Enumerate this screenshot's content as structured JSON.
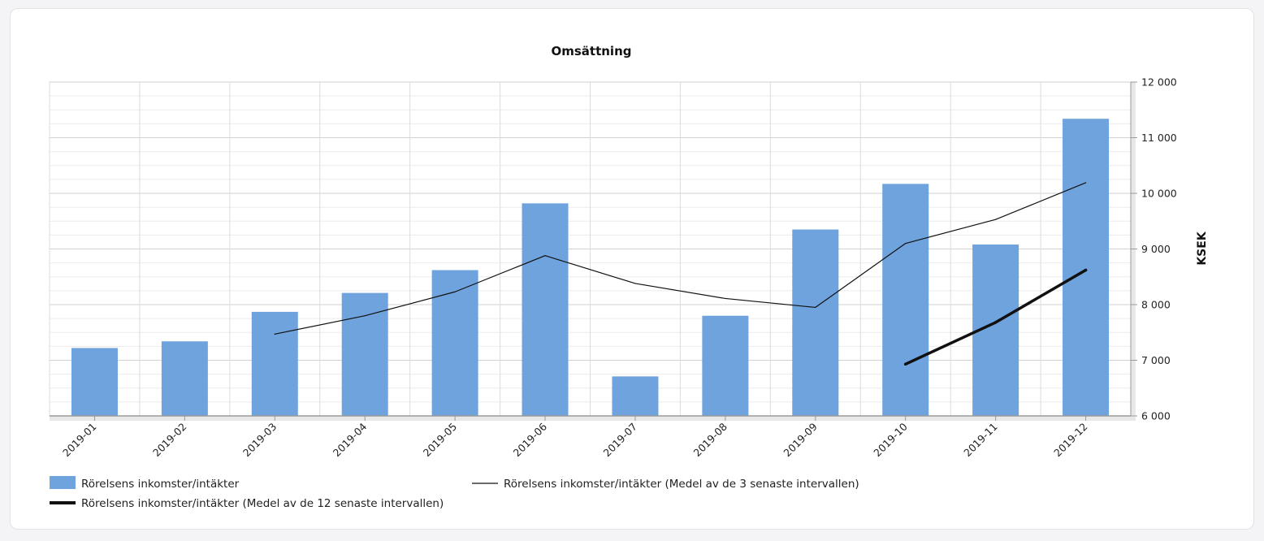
{
  "chart_data": {
    "type": "bar",
    "title": "Omsättning",
    "xlabel": "",
    "ylabel": "KSEK",
    "categories": [
      "2019-01",
      "2019-02",
      "2019-03",
      "2019-04",
      "2019-05",
      "2019-06",
      "2019-07",
      "2019-08",
      "2019-09",
      "2019-10",
      "2019-11",
      "2019-12"
    ],
    "ylim": [
      6000,
      12000
    ],
    "y_ticks": [
      6000,
      7000,
      8000,
      9000,
      10000,
      11000,
      12000
    ],
    "y_tick_labels": [
      "6 000",
      "7 000",
      "8 000",
      "9 000",
      "10 000",
      "11 000",
      "12 000"
    ],
    "y_axis_side": "right",
    "grid": true,
    "legend_position": "bottom",
    "series": [
      {
        "name": "Rörelsens inkomster/intäkter",
        "kind": "bar",
        "color": "#6fa3dd",
        "values": [
          7220,
          7340,
          7870,
          8210,
          8620,
          9820,
          6710,
          7800,
          9350,
          10170,
          9080,
          11340
        ]
      },
      {
        "name": "Rörelsens inkomster/intäkter (Medel av de 3 senaste intervallen)",
        "kind": "line",
        "color": "#111111",
        "line_weight": "thin",
        "values": [
          null,
          null,
          7470,
          7800,
          8230,
          8880,
          8380,
          8110,
          7950,
          9100,
          9530,
          10190
        ]
      },
      {
        "name": "Rörelsens inkomster/intäkter (Medel av de 12 senaste intervallen)",
        "kind": "line",
        "color": "#111111",
        "line_weight": "thick",
        "values": [
          null,
          null,
          null,
          null,
          null,
          null,
          null,
          null,
          null,
          6930,
          7680,
          8620
        ]
      }
    ]
  }
}
